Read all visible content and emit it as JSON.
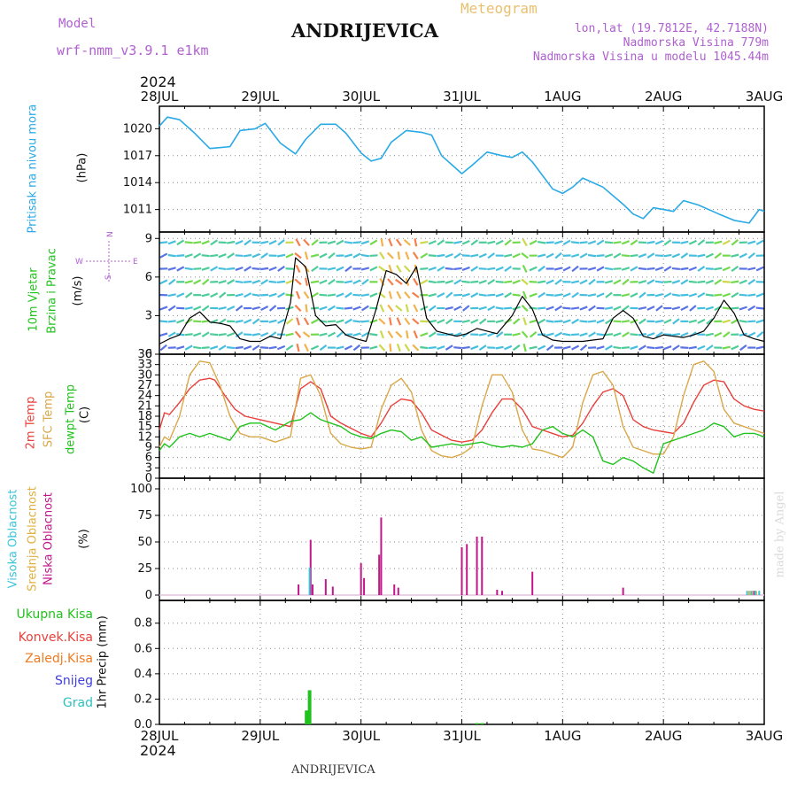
{
  "header": {
    "model_label": "Model",
    "model_name": "wrf-nmm_v3.9.1  e1km",
    "title": "ANDRIJEVICA",
    "product": "Meteogram",
    "lonlat": "lon,lat (19.7812E, 42.7188N)",
    "elevation": "Nadmorska Visina 779m",
    "model_elevation": "Nadmorska Visina u modelu 1045.44m",
    "year_top": "2024",
    "year_bottom": "2024",
    "footer_station": "ANDRIJEVICA",
    "watermark": "made by Angel"
  },
  "colors": {
    "pressure": "#29a9e6",
    "temp2m": "#e8413c",
    "sfc_temp": "#d9a84a",
    "dewpoint": "#22c21e",
    "high_cloud": "#3ac4d8",
    "mid_cloud": "#e0b040",
    "low_cloud": "#c0188a",
    "total_precip": "#22c21e",
    "conv_precip": "#e8413c",
    "frozen": "#f07a20",
    "snow": "#4040e0",
    "hail": "#30c0c0",
    "wind_speed": "#000000",
    "gust": "#e8413c"
  },
  "chart_data": [
    {
      "type": "line",
      "panel": "pressure",
      "ylabel_main": "Pritisak na nivou mora",
      "ylabel_unit": "(hPa)",
      "x_labels": [
        "28JUL",
        "29JUL",
        "30JUL",
        "31JUL",
        "1AUG",
        "2AUG",
        "3AUG"
      ],
      "x_days": [
        0,
        6
      ],
      "ylim": [
        1008.5,
        1022.5
      ],
      "yticks": [
        1011,
        1014,
        1017,
        1020
      ],
      "grid": true,
      "series": [
        {
          "x": [
            0,
            0.08,
            0.2,
            0.35,
            0.5,
            0.7,
            0.8,
            0.95,
            1.05,
            1.2,
            1.35,
            1.45,
            1.6,
            1.75,
            1.85,
            2.0,
            2.1,
            2.2,
            2.3,
            2.45,
            2.6,
            2.7,
            2.8,
            2.9,
            3.0,
            3.1,
            3.25,
            3.4,
            3.5,
            3.6,
            3.7,
            3.8,
            3.9,
            4.0,
            4.1,
            4.2,
            4.4,
            4.6,
            4.7,
            4.8,
            4.9,
            5.0,
            5.1,
            5.2,
            5.35,
            5.55,
            5.7,
            5.85,
            5.95,
            6.0
          ],
          "y": [
            1020.3,
            1021.3,
            1021.0,
            1019.5,
            1017.8,
            1018.0,
            1019.8,
            1020.0,
            1020.6,
            1018.4,
            1017.2,
            1018.8,
            1020.5,
            1020.5,
            1019.5,
            1017.3,
            1016.4,
            1016.7,
            1018.5,
            1019.8,
            1019.6,
            1019.3,
            1017.0,
            1016.0,
            1015.0,
            1015.9,
            1017.4,
            1017.0,
            1016.8,
            1017.4,
            1016.3,
            1014.8,
            1013.3,
            1012.8,
            1013.5,
            1014.5,
            1013.5,
            1011.6,
            1010.5,
            1010.0,
            1011.2,
            1011.0,
            1010.8,
            1012.0,
            1011.5,
            1010.5,
            1009.8,
            1009.5,
            1011.0,
            1010.8
          ]
        }
      ]
    },
    {
      "type": "line",
      "panel": "wind",
      "ylabel_main": "10m Vjetar",
      "ylabel_main2": "Brzina i Pravac",
      "ylabel_unit": "(m/s)",
      "compass_labels": [
        "N",
        "S",
        "W",
        "E"
      ],
      "ylim": [
        0,
        9.5
      ],
      "yticks": [
        0,
        3,
        6,
        9
      ],
      "grid": true,
      "series": [
        {
          "name": "",
          "x": [
            0,
            0.1,
            0.2,
            0.3,
            0.4,
            0.5,
            0.6,
            0.7,
            0.8,
            0.9,
            1.0,
            1.1,
            1.2,
            1.3,
            1.35,
            1.45,
            1.55,
            1.65,
            1.75,
            1.85,
            1.95,
            2.05,
            2.15,
            2.25,
            2.35,
            2.45,
            2.55,
            2.65,
            2.75,
            2.85,
            2.95,
            3.05,
            3.15,
            3.25,
            3.35,
            3.5,
            3.6,
            3.7,
            3.8,
            3.9,
            4.0,
            4.1,
            4.2,
            4.3,
            4.4,
            4.5,
            4.6,
            4.7,
            4.8,
            4.9,
            5.0,
            5.1,
            5.2,
            5.3,
            5.4,
            5.5,
            5.6,
            5.7,
            5.8,
            5.9,
            6.0
          ],
          "y": [
            0.8,
            1.2,
            1.5,
            2.8,
            3.3,
            2.5,
            2.4,
            2.2,
            1.2,
            1.0,
            1.0,
            1.4,
            1.2,
            4.0,
            7.5,
            6.8,
            3.0,
            2.2,
            2.3,
            1.5,
            1.2,
            1.0,
            3.5,
            6.5,
            6.2,
            5.5,
            6.8,
            2.8,
            1.8,
            1.6,
            1.4,
            1.6,
            2.0,
            1.8,
            1.6,
            3.0,
            4.5,
            3.5,
            1.5,
            1.1,
            1.0,
            1.0,
            1.0,
            1.1,
            1.2,
            2.8,
            3.4,
            2.8,
            1.4,
            1.2,
            1.5,
            1.4,
            1.3,
            1.5,
            1.8,
            2.8,
            4.2,
            3.2,
            1.5,
            1.2,
            1.0
          ]
        }
      ]
    },
    {
      "type": "line",
      "panel": "temperature",
      "ylabel_main": "2m Temp",
      "ylabel_main2": "SFC Temp",
      "ylabel_main3": "dewpt Temp",
      "ylabel_unit": "(C)",
      "ylim": [
        0,
        36
      ],
      "yticks": [
        0,
        3,
        6,
        9,
        12,
        15,
        18,
        21,
        24,
        27,
        30,
        33,
        36
      ],
      "grid": true,
      "series": [
        {
          "name": "2m Temp",
          "x": [
            0,
            0.05,
            0.1,
            0.2,
            0.3,
            0.4,
            0.5,
            0.55,
            0.65,
            0.75,
            0.85,
            1.0,
            1.15,
            1.3,
            1.4,
            1.5,
            1.6,
            1.7,
            1.8,
            1.9,
            2.0,
            2.1,
            2.2,
            2.3,
            2.4,
            2.5,
            2.6,
            2.7,
            2.8,
            2.9,
            3.0,
            3.1,
            3.2,
            3.3,
            3.4,
            3.5,
            3.6,
            3.7,
            3.8,
            3.9,
            4.0,
            4.1,
            4.2,
            4.3,
            4.4,
            4.5,
            4.6,
            4.7,
            4.8,
            4.9,
            5.0,
            5.1,
            5.2,
            5.3,
            5.4,
            5.5,
            5.6,
            5.7,
            5.8,
            5.9,
            6.0
          ],
          "y": [
            14,
            19,
            18.5,
            22,
            26,
            28.5,
            29,
            28.5,
            24,
            20,
            18,
            17,
            16,
            15,
            26,
            28,
            26,
            18,
            16,
            14.5,
            13,
            12,
            16,
            21,
            23,
            22.5,
            19,
            14,
            12.5,
            11,
            10.5,
            11,
            14,
            19,
            23,
            23,
            20,
            15,
            14,
            13,
            12,
            12.5,
            16,
            21,
            25,
            26,
            24,
            17,
            15,
            14,
            13.5,
            13,
            16,
            22,
            27,
            28.5,
            28,
            23,
            21,
            20,
            19.5
          ]
        },
        {
          "name": "SFC Temp",
          "x": [
            0,
            0.05,
            0.1,
            0.2,
            0.3,
            0.4,
            0.5,
            0.6,
            0.7,
            0.8,
            0.9,
            1.0,
            1.15,
            1.3,
            1.4,
            1.5,
            1.6,
            1.7,
            1.8,
            1.9,
            2.0,
            2.1,
            2.2,
            2.3,
            2.4,
            2.5,
            2.6,
            2.7,
            2.8,
            2.9,
            3.0,
            3.1,
            3.2,
            3.3,
            3.4,
            3.5,
            3.6,
            3.7,
            3.8,
            3.9,
            4.0,
            4.1,
            4.2,
            4.3,
            4.4,
            4.5,
            4.6,
            4.7,
            4.8,
            4.9,
            5.0,
            5.1,
            5.2,
            5.3,
            5.4,
            5.5,
            5.6,
            5.7,
            5.8,
            5.9,
            6.0
          ],
          "y": [
            9,
            12,
            11,
            18,
            30,
            34,
            33.5,
            27,
            18,
            13,
            12,
            12,
            10.5,
            12,
            29,
            30,
            24,
            13,
            10,
            9,
            8.5,
            9,
            20,
            27,
            29,
            25,
            14,
            8,
            6.5,
            6,
            7,
            9,
            21,
            30,
            30,
            25,
            14,
            8.5,
            8,
            7,
            6,
            9,
            22,
            30,
            31,
            27,
            15,
            9,
            8,
            7,
            7,
            12,
            24,
            33,
            34,
            31,
            20,
            16,
            15,
            14,
            13
          ]
        },
        {
          "name": "dewpt Temp",
          "x": [
            0,
            0.05,
            0.1,
            0.2,
            0.3,
            0.4,
            0.5,
            0.6,
            0.7,
            0.8,
            0.9,
            1.0,
            1.15,
            1.3,
            1.4,
            1.5,
            1.6,
            1.7,
            1.8,
            1.9,
            2.0,
            2.1,
            2.2,
            2.3,
            2.4,
            2.5,
            2.6,
            2.7,
            2.8,
            2.9,
            3.0,
            3.1,
            3.2,
            3.3,
            3.4,
            3.5,
            3.6,
            3.7,
            3.8,
            3.9,
            4.0,
            4.1,
            4.2,
            4.3,
            4.4,
            4.5,
            4.6,
            4.7,
            4.8,
            4.9,
            5.0,
            5.1,
            5.2,
            5.3,
            5.4,
            5.5,
            5.6,
            5.7,
            5.8,
            5.9,
            6.0
          ],
          "y": [
            8,
            10,
            9,
            12,
            13,
            12,
            13,
            12,
            11,
            15,
            16,
            16,
            14,
            16.5,
            17,
            19,
            17,
            16,
            15,
            13,
            12,
            11.5,
            13,
            14,
            13.5,
            11,
            12,
            9,
            9.5,
            10,
            9.5,
            10,
            10.5,
            9.5,
            9,
            9.5,
            9,
            10,
            14,
            15,
            13,
            12,
            14,
            12,
            5,
            4,
            6,
            5,
            3,
            1.5,
            10,
            11,
            12,
            13,
            14,
            16,
            15,
            12,
            13,
            13,
            12
          ]
        }
      ]
    },
    {
      "type": "bar",
      "panel": "cloud",
      "ylabel_main": "Visoka Oblacnost",
      "ylabel_main2": "Srednja Oblacnost",
      "ylabel_main3": "Niska Oblacnost",
      "ylabel_unit": "(%)",
      "ylim": [
        -5,
        110
      ],
      "yticks": [
        0,
        25,
        50,
        75,
        100
      ],
      "grid": true,
      "series": [
        {
          "name": "Niska Oblacnost",
          "x": [
            1.38,
            1.5,
            1.52,
            1.65,
            1.72,
            2.0,
            2.03,
            2.18,
            2.2,
            2.33,
            2.37,
            3.0,
            3.05,
            3.15,
            3.2,
            3.35,
            3.4,
            3.7,
            4.6,
            5.9
          ],
          "values": [
            10,
            52,
            10,
            15,
            8,
            30,
            16,
            38,
            73,
            10,
            7,
            45,
            48,
            55,
            55,
            5,
            4,
            22,
            7,
            4
          ]
        },
        {
          "name": "Srednja Oblacnost",
          "x": [
            5.85,
            5.88,
            5.92
          ],
          "values": [
            4,
            4,
            4
          ]
        },
        {
          "name": "Visoka Oblacnost",
          "x": [
            1.49,
            5.83,
            5.87,
            5.91,
            5.95
          ],
          "values": [
            26,
            4,
            4,
            4,
            4
          ]
        }
      ]
    },
    {
      "type": "bar",
      "panel": "precip",
      "ylabel_main": "1hr Precip (mm)",
      "legend": [
        "Ukupna  Kisa",
        "Konvek.Kisa",
        "Zaledj.Kisa",
        "Snijeg",
        "Grad"
      ],
      "ylim": [
        0,
        0.98
      ],
      "yticks": [
        0,
        0.2,
        0.4,
        0.6,
        0.8
      ],
      "grid": true,
      "series": [
        {
          "name": "Ukupna  Kisa",
          "x": [
            1.46,
            1.49,
            3.15,
            3.2
          ],
          "values": [
            0.11,
            0.27,
            0.01,
            0.01
          ]
        }
      ]
    }
  ]
}
